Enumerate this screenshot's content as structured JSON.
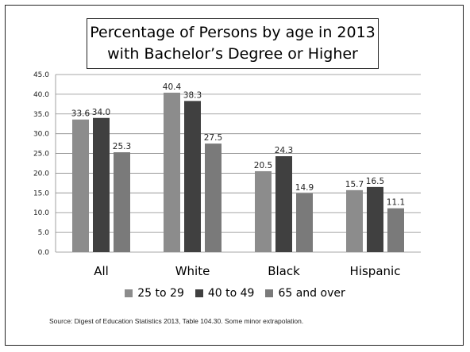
{
  "chart_data": {
    "type": "bar",
    "title_line1": "Percentage of Persons by age in 2013",
    "title_line2": "with Bachelor’s Degree or Higher",
    "categories": [
      "All",
      "White",
      "Black",
      "Hispanic"
    ],
    "series": [
      {
        "name": "25 to 29",
        "values": [
          33.6,
          40.4,
          20.5,
          15.7
        ],
        "labels": [
          "33.6",
          "40.4",
          "20.5",
          "15.7"
        ],
        "color": "#8c8c8c"
      },
      {
        "name": "40 to 49",
        "values": [
          34.0,
          38.3,
          24.3,
          16.5
        ],
        "labels": [
          "34.0",
          "38.3",
          "24.3",
          "16.5"
        ],
        "color": "#404040"
      },
      {
        "name": "65 and over",
        "values": [
          25.3,
          27.5,
          14.9,
          11.1
        ],
        "labels": [
          "25.3",
          "27.5",
          "14.9",
          "11.1"
        ],
        "color": "#7a7a7a"
      }
    ],
    "ylim": [
      0,
      45
    ],
    "yticks": [
      "0.0",
      "5.0",
      "10.0",
      "15.0",
      "20.0",
      "25.0",
      "30.0",
      "35.0",
      "40.0",
      "45.0"
    ],
    "grid": true,
    "legend_position": "bottom"
  },
  "source": "Source:  Digest of Education Statistics 2013, Table 104.30.  Some minor extrapolation."
}
